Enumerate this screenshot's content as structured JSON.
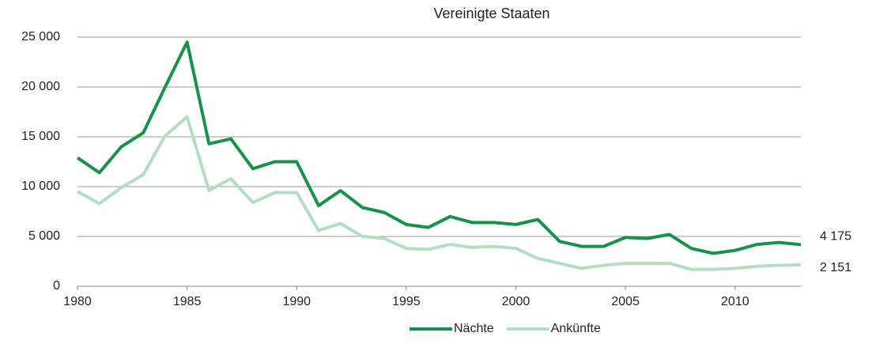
{
  "chart_data": {
    "type": "line",
    "title": "Vereinigte Staaten",
    "x": [
      1980,
      1981,
      1982,
      1983,
      1984,
      1985,
      1986,
      1987,
      1988,
      1989,
      1990,
      1991,
      1992,
      1993,
      1994,
      1995,
      1996,
      1997,
      1998,
      1999,
      2000,
      2001,
      2002,
      2003,
      2004,
      2005,
      2006,
      2007,
      2008,
      2009,
      2010,
      2011,
      2012,
      2013
    ],
    "series": [
      {
        "name": "Nächte",
        "color": "#17924a",
        "values": [
          12900,
          11400,
          14000,
          15400,
          20000,
          24500,
          14300,
          14800,
          11800,
          12500,
          12500,
          8100,
          9600,
          7900,
          7400,
          6200,
          5900,
          7000,
          6400,
          6400,
          6200,
          6700,
          4500,
          4000,
          4000,
          4900,
          4800,
          5200,
          3800,
          3300,
          3600,
          4200,
          4400,
          4175
        ],
        "value_labels": [
          null,
          null,
          null,
          null,
          null,
          null,
          null,
          null,
          null,
          null,
          null,
          null,
          null,
          null,
          null,
          null,
          null,
          null,
          null,
          null,
          null,
          null,
          null,
          null,
          null,
          null,
          null,
          null,
          null,
          null,
          null,
          null,
          null,
          "4 175"
        ]
      },
      {
        "name": "Ankünfte",
        "color": "#b3dec3",
        "values": [
          9500,
          8300,
          9900,
          11200,
          15100,
          17000,
          9600,
          10800,
          8400,
          9400,
          9400,
          5600,
          6300,
          5000,
          4800,
          3800,
          3700,
          4200,
          3900,
          4000,
          3800,
          2800,
          2300,
          1800,
          2100,
          2300,
          2300,
          2300,
          1700,
          1700,
          1800,
          2000,
          2100,
          2151
        ],
        "value_labels": [
          null,
          null,
          null,
          null,
          null,
          null,
          null,
          null,
          null,
          null,
          null,
          null,
          null,
          null,
          null,
          null,
          null,
          null,
          null,
          null,
          null,
          null,
          null,
          null,
          null,
          null,
          null,
          null,
          null,
          null,
          null,
          null,
          null,
          "2 151"
        ]
      }
    ],
    "xlim": [
      1980,
      2013
    ],
    "xticks": [
      1980,
      1985,
      1990,
      1995,
      2000,
      2005,
      2010
    ],
    "ylim": [
      0,
      25000
    ],
    "yticks": [
      0,
      {
        "value": 5000,
        "label": "5 000"
      },
      {
        "value": 10000,
        "label": "10 000"
      },
      {
        "value": 15000,
        "label": "15 000"
      },
      {
        "value": 20000,
        "label": "20 000"
      },
      {
        "value": 25000,
        "label": "25 000"
      }
    ],
    "grid": true,
    "legend": "bottom"
  }
}
